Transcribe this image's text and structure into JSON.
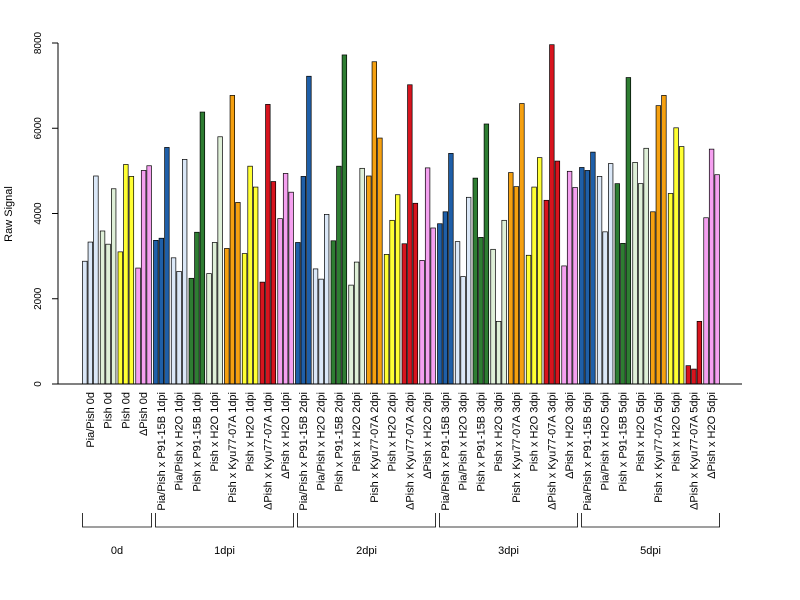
{
  "chart_data": {
    "type": "bar",
    "ylabel": "Raw Signal",
    "ylim": [
      0,
      8000
    ],
    "yticks": [
      0,
      2000,
      4000,
      6000,
      8000
    ],
    "grid": false,
    "legend": "none",
    "categories": [
      {
        "label": "Pia/Pish 0d",
        "color": "#dbe8f8",
        "values": [
          2880,
          3330,
          4880
        ]
      },
      {
        "label": "Pish 0d",
        "color": "#dff0d8",
        "values": [
          3590,
          3280,
          4580
        ]
      },
      {
        "label": "Pish 0d",
        "color": "#ffff33",
        "values": [
          3100,
          5150,
          4870
        ]
      },
      {
        "label": "ΔPish 0d",
        "color": "#f5a0f0",
        "values": [
          2720,
          5010,
          5120
        ]
      },
      {
        "label": "Pia/Pish x P91-15B 1dpi",
        "color": "#1f5fa8",
        "values": [
          3370,
          3420,
          5550
        ]
      },
      {
        "label": "Pia/Pish x H2O 1dpi",
        "color": "#dbe8f8",
        "values": [
          2960,
          2640,
          5270
        ]
      },
      {
        "label": "Pish x P91-15B 1dpi",
        "color": "#2e7d32",
        "values": [
          2480,
          3560,
          6380
        ]
      },
      {
        "label": "Pish x H2O 1dpi",
        "color": "#dff0d8",
        "values": [
          2590,
          3320,
          5800
        ]
      },
      {
        "label": "Pish x Kyu77-07A 1dpi",
        "color": "#f5a010",
        "values": [
          3180,
          6770,
          4260
        ]
      },
      {
        "label": "Pish x H2O 1dpi",
        "color": "#ffff33",
        "values": [
          3060,
          5110,
          4620
        ]
      },
      {
        "label": "ΔPish x Kyu77-07A 1dpi",
        "color": "#d7141e",
        "values": [
          2390,
          6560,
          4750
        ]
      },
      {
        "label": "ΔPish x H2O 1dpi",
        "color": "#f5a0f0",
        "values": [
          3880,
          4940,
          4500
        ]
      },
      {
        "label": "Pia/Pish x P91-15B 2dpi",
        "color": "#1f5fa8",
        "values": [
          3320,
          4870,
          7220
        ]
      },
      {
        "label": "Pia/Pish x H2O 2dpi",
        "color": "#dbe8f8",
        "values": [
          2700,
          2460,
          3980
        ]
      },
      {
        "label": "Pish x P91-15B 2dpi",
        "color": "#2e7d32",
        "values": [
          3360,
          5110,
          7720
        ]
      },
      {
        "label": "Pish x H2O 2dpi",
        "color": "#dff0d8",
        "values": [
          2320,
          2860,
          5060
        ]
      },
      {
        "label": "Pish x Kyu77-07A 2dpi",
        "color": "#f5a010",
        "values": [
          4880,
          7560,
          5770
        ]
      },
      {
        "label": "Pish x H2O 2dpi",
        "color": "#ffff33",
        "values": [
          3040,
          3840,
          4440
        ]
      },
      {
        "label": "ΔPish x Kyu77-07A 2dpi",
        "color": "#d7141e",
        "values": [
          3290,
          7020,
          4240
        ]
      },
      {
        "label": "ΔPish x H2O 2dpi",
        "color": "#f5a0f0",
        "values": [
          2900,
          5070,
          3660
        ]
      },
      {
        "label": "Pia/Pish x P91-15B 3dpi",
        "color": "#1f5fa8",
        "values": [
          3760,
          4040,
          5410
        ]
      },
      {
        "label": "Pia/Pish x H2O 3dpi",
        "color": "#dbe8f8",
        "values": [
          3340,
          2520,
          4380
        ]
      },
      {
        "label": "Pish x P91-15B 3dpi",
        "color": "#2e7d32",
        "values": [
          4830,
          3440,
          6100
        ]
      },
      {
        "label": "Pish x H2O 3dpi",
        "color": "#dff0d8",
        "values": [
          3160,
          1470,
          3840
        ]
      },
      {
        "label": "Pish x Kyu77-07A 3dpi",
        "color": "#f5a010",
        "values": [
          4960,
          4630,
          6580
        ]
      },
      {
        "label": "Pish x H2O 3dpi",
        "color": "#ffff33",
        "values": [
          3020,
          4620,
          5310
        ]
      },
      {
        "label": "ΔPish x Kyu77-07A 3dpi",
        "color": "#d7141e",
        "values": [
          4310,
          7960,
          5230
        ]
      },
      {
        "label": "ΔPish x H2O 3dpi",
        "color": "#f5a0f0",
        "values": [
          2770,
          4990,
          4610
        ]
      },
      {
        "label": "Pia/Pish x P91-15B 5dpi",
        "color": "#1f5fa8",
        "values": [
          5080,
          5010,
          5440
        ]
      },
      {
        "label": "Pia/Pish x H2O 5dpi",
        "color": "#dbe8f8",
        "values": [
          4870,
          3570,
          5170
        ]
      },
      {
        "label": "Pish x P91-15B 5dpi",
        "color": "#2e7d32",
        "values": [
          4700,
          3300,
          7190
        ]
      },
      {
        "label": "Pish x H2O 5dpi",
        "color": "#dff0d8",
        "values": [
          5200,
          4700,
          5530
        ]
      },
      {
        "label": "Pish x Kyu77-07A 5dpi",
        "color": "#f5a010",
        "values": [
          4040,
          6530,
          6770
        ]
      },
      {
        "label": "Pish x H2O 5dpi",
        "color": "#ffff33",
        "values": [
          4470,
          6010,
          5570
        ]
      },
      {
        "label": "ΔPish x Kyu77-07A 5dpi",
        "color": "#d7141e",
        "values": [
          430,
          350,
          1470
        ]
      },
      {
        "label": "ΔPish x H2O 5dpi",
        "color": "#f5a0f0",
        "values": [
          3900,
          5510,
          4910
        ]
      }
    ],
    "groups": [
      {
        "label": "0d",
        "start": 0,
        "end": 3
      },
      {
        "label": "1dpi",
        "start": 4,
        "end": 11
      },
      {
        "label": "2dpi",
        "start": 12,
        "end": 19
      },
      {
        "label": "3dpi",
        "start": 20,
        "end": 27
      },
      {
        "label": "5dpi",
        "start": 28,
        "end": 35
      }
    ]
  }
}
